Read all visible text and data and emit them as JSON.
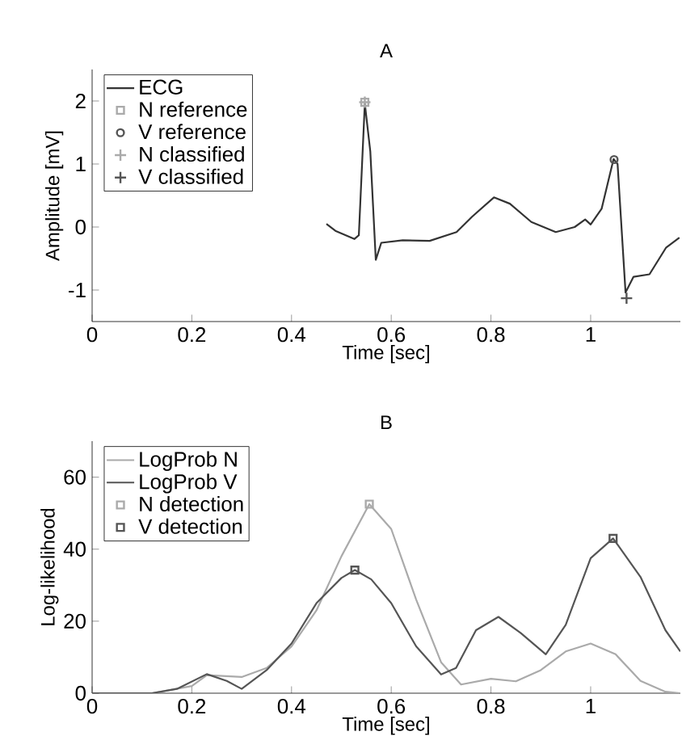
{
  "chart_data": [
    {
      "type": "line",
      "title": "A",
      "xlabel": "Time [sec]",
      "ylabel": "Amplitude [mV]",
      "xlim": [
        0,
        1.18
      ],
      "ylim": [
        -1.5,
        2.5
      ],
      "xticks": [
        0,
        0.2,
        0.4,
        0.6,
        0.8,
        1
      ],
      "yticks": [
        -1,
        0,
        1,
        2
      ],
      "legend": "top left",
      "grid": false,
      "series": [
        {
          "name": "ECG",
          "color": "#333333",
          "marker": "none",
          "line_style": "solid",
          "x": [
            0.47,
            0.488,
            0.526,
            0.535,
            0.547,
            0.558,
            0.569,
            0.58,
            0.623,
            0.677,
            0.731,
            0.763,
            0.806,
            0.838,
            0.881,
            0.93,
            0.968,
            0.989,
            1.0,
            1.022,
            1.046,
            1.054,
            1.07,
            1.086,
            1.118,
            1.151,
            1.178
          ],
          "values": [
            0.05,
            -0.06,
            -0.19,
            -0.13,
            1.96,
            1.2,
            -0.52,
            -0.25,
            -0.21,
            -0.22,
            -0.08,
            0.17,
            0.47,
            0.37,
            0.08,
            -0.08,
            0.0,
            0.12,
            0.04,
            0.29,
            1.08,
            1.0,
            -1.04,
            -0.79,
            -0.75,
            -0.33,
            -0.17
          ]
        },
        {
          "name": "N reference",
          "type": "scatter",
          "color": "#aaaaaa",
          "marker": "square",
          "x": [
            0.547
          ],
          "values": [
            1.98
          ]
        },
        {
          "name": "V reference",
          "type": "scatter",
          "color": "#555555",
          "marker": "circle",
          "x": [
            1.047
          ],
          "values": [
            1.07
          ]
        },
        {
          "name": "N classified",
          "type": "scatter",
          "color": "#aaaaaa",
          "marker": "cross",
          "x": [
            0.547
          ],
          "values": [
            1.98
          ]
        },
        {
          "name": "V classified",
          "type": "scatter",
          "color": "#555555",
          "marker": "cross",
          "x": [
            1.072
          ],
          "values": [
            -1.13
          ]
        }
      ]
    },
    {
      "type": "line",
      "title": "B",
      "xlabel": "Time [sec]",
      "ylabel": "Log-likelihood",
      "xlim": [
        0,
        1.18
      ],
      "ylim": [
        0,
        70
      ],
      "xticks": [
        0,
        0.2,
        0.4,
        0.6,
        0.8,
        1
      ],
      "yticks": [
        0,
        20,
        40,
        60
      ],
      "legend": "top left",
      "grid": false,
      "series": [
        {
          "name": "LogProb N",
          "color": "#aaaaaa",
          "marker": "none",
          "line_style": "solid",
          "x": [
            0,
            0.12,
            0.2,
            0.23,
            0.3,
            0.35,
            0.4,
            0.45,
            0.5,
            0.556,
            0.6,
            0.65,
            0.7,
            0.74,
            0.8,
            0.85,
            0.9,
            0.95,
            1.0,
            1.05,
            1.1,
            1.15,
            1.18
          ],
          "values": [
            0,
            0,
            2,
            5,
            4.5,
            7,
            13,
            23,
            38,
            52.5,
            45.6,
            26,
            8.6,
            2.4,
            4,
            3.3,
            6.4,
            11.6,
            13.8,
            10.8,
            3.4,
            0.4,
            0
          ]
        },
        {
          "name": "LogProb V",
          "color": "#555555",
          "marker": "none",
          "line_style": "solid",
          "x": [
            0,
            0.12,
            0.17,
            0.23,
            0.27,
            0.3,
            0.35,
            0.4,
            0.45,
            0.5,
            0.527,
            0.56,
            0.6,
            0.65,
            0.7,
            0.73,
            0.77,
            0.815,
            0.86,
            0.91,
            0.95,
            1.0,
            1.045,
            1.1,
            1.15,
            1.18
          ],
          "values": [
            0,
            0,
            1.2,
            5.3,
            3.4,
            1.2,
            6.4,
            13.8,
            25,
            32,
            34.2,
            31.6,
            25,
            13,
            5.2,
            7,
            17.5,
            21.2,
            16.7,
            10.8,
            19,
            37.5,
            43,
            32.3,
            17.5,
            11.6
          ]
        },
        {
          "name": "N detection",
          "type": "scatter",
          "color": "#aaaaaa",
          "marker": "square",
          "x": [
            0.556
          ],
          "values": [
            52.5
          ]
        },
        {
          "name": "V detection",
          "type": "scatter",
          "color": "#555555",
          "marker": "square",
          "x": [
            0.527,
            1.045
          ],
          "values": [
            34.2,
            43
          ]
        }
      ]
    }
  ]
}
